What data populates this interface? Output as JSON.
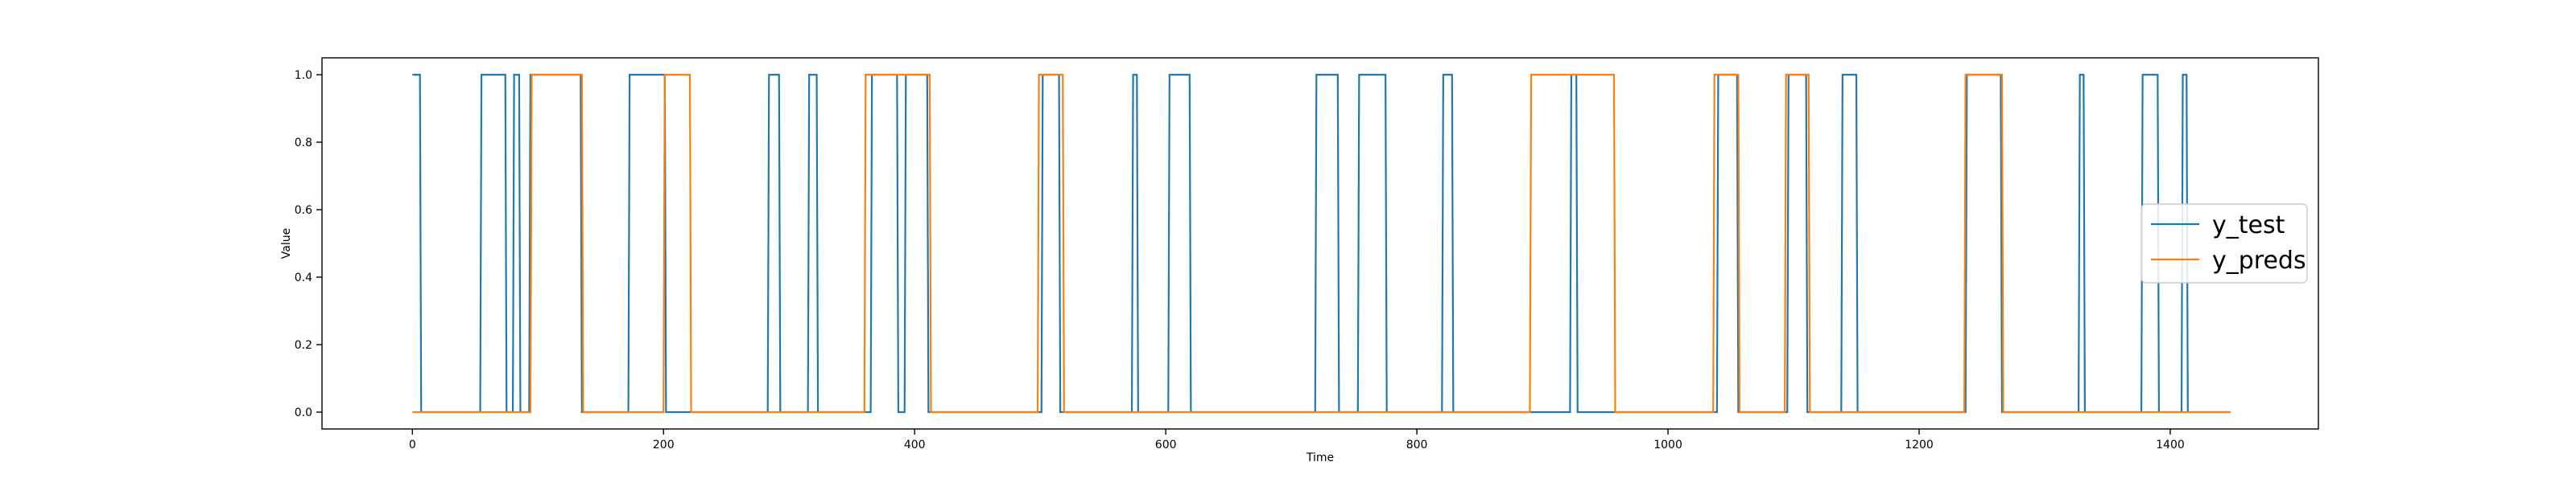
{
  "chart_data": {
    "type": "line",
    "title": "",
    "xlabel": "Time",
    "ylabel": "Value",
    "xlim": [
      -72,
      1518
    ],
    "ylim": [
      -0.05,
      1.05
    ],
    "xticks": [
      0,
      200,
      400,
      600,
      800,
      1000,
      1200,
      1400
    ],
    "yticks": [
      0.0,
      0.2,
      0.4,
      0.6,
      0.8,
      1.0
    ],
    "xtick_labels": [
      "0",
      "200",
      "400",
      "600",
      "800",
      "1000",
      "1200",
      "1400"
    ],
    "ytick_labels": [
      "0.0",
      "0.2",
      "0.4",
      "0.6",
      "0.8",
      "1.0"
    ],
    "grid": false,
    "legend_position": "center-right",
    "series": [
      {
        "name": "y_test",
        "color": "#1f77b4",
        "x": [
          0,
          6,
          7,
          54,
          55,
          74,
          75,
          80,
          81,
          85,
          86,
          93,
          94,
          134,
          135,
          172,
          173,
          201,
          202,
          283,
          284,
          292,
          293,
          315,
          316,
          322,
          323,
          365,
          366,
          386,
          387,
          392,
          393,
          410,
          411,
          501,
          502,
          515,
          516,
          573,
          574,
          577,
          578,
          602,
          603,
          619,
          620,
          719,
          720,
          737,
          738,
          753,
          754,
          775,
          776,
          820,
          821,
          828,
          829,
          922,
          923,
          927,
          928,
          1039,
          1040,
          1055,
          1056,
          1095,
          1096,
          1110,
          1111,
          1138,
          1139,
          1150,
          1151,
          1237,
          1238,
          1265,
          1266,
          1327,
          1328,
          1331,
          1332,
          1377,
          1378,
          1390,
          1391,
          1409,
          1410,
          1413,
          1414,
          1448
        ],
        "y": [
          1,
          1,
          0,
          0,
          1,
          1,
          0,
          0,
          1,
          1,
          0,
          0,
          1,
          1,
          0,
          0,
          1,
          1,
          0,
          0,
          1,
          1,
          0,
          0,
          1,
          1,
          0,
          0,
          1,
          1,
          0,
          0,
          1,
          1,
          0,
          0,
          1,
          1,
          0,
          0,
          1,
          1,
          0,
          0,
          1,
          1,
          0,
          0,
          1,
          1,
          0,
          0,
          1,
          1,
          0,
          0,
          1,
          1,
          0,
          0,
          1,
          1,
          0,
          0,
          1,
          1,
          0,
          0,
          1,
          1,
          0,
          0,
          1,
          1,
          0,
          0,
          1,
          1,
          0,
          0,
          1,
          1,
          0,
          0,
          1,
          1,
          0,
          0,
          1,
          1,
          0,
          0
        ]
      },
      {
        "name": "y_preds",
        "color": "#ff7f0e",
        "x": [
          0,
          94,
          95,
          135,
          136,
          200,
          201,
          221,
          222,
          360,
          361,
          412,
          413,
          498,
          499,
          518,
          519,
          890,
          891,
          957,
          958,
          1036,
          1037,
          1056,
          1057,
          1093,
          1094,
          1112,
          1113,
          1236,
          1237,
          1266,
          1267,
          1448
        ],
        "y": [
          0,
          0,
          1,
          1,
          0,
          0,
          1,
          1,
          0,
          0,
          1,
          1,
          0,
          0,
          1,
          1,
          0,
          0,
          1,
          1,
          0,
          0,
          1,
          1,
          0,
          0,
          1,
          1,
          0,
          0,
          1,
          1,
          0,
          0
        ]
      }
    ]
  }
}
